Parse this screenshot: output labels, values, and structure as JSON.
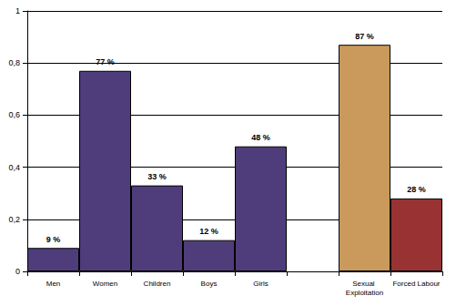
{
  "chart_data": {
    "type": "bar",
    "categories": [
      "Men",
      "Women",
      "Children",
      "Boys",
      "Girls",
      null,
      "Sexual Exploitation",
      "Forced Labour"
    ],
    "values": [
      0.09,
      0.77,
      0.33,
      0.12,
      0.48,
      null,
      0.87,
      0.28
    ],
    "value_labels": [
      "9 %",
      "77 %",
      "33 %",
      "12 %",
      "48 %",
      null,
      "87 %",
      "28 %"
    ],
    "colors": [
      "#4e3d7a",
      "#4e3d7a",
      "#4e3d7a",
      "#4e3d7a",
      "#4e3d7a",
      null,
      "#c99a5b",
      "#993333"
    ],
    "ylim": [
      0,
      1
    ],
    "yticks": [
      0,
      {
        "value": 0.2,
        "label": "0,2"
      },
      {
        "value": 0.4,
        "label": "0,4"
      },
      {
        "value": 0.6,
        "label": "0,6"
      },
      {
        "value": 0.8,
        "label": "0,8"
      },
      1
    ],
    "grid": true,
    "data_labels": true
  }
}
